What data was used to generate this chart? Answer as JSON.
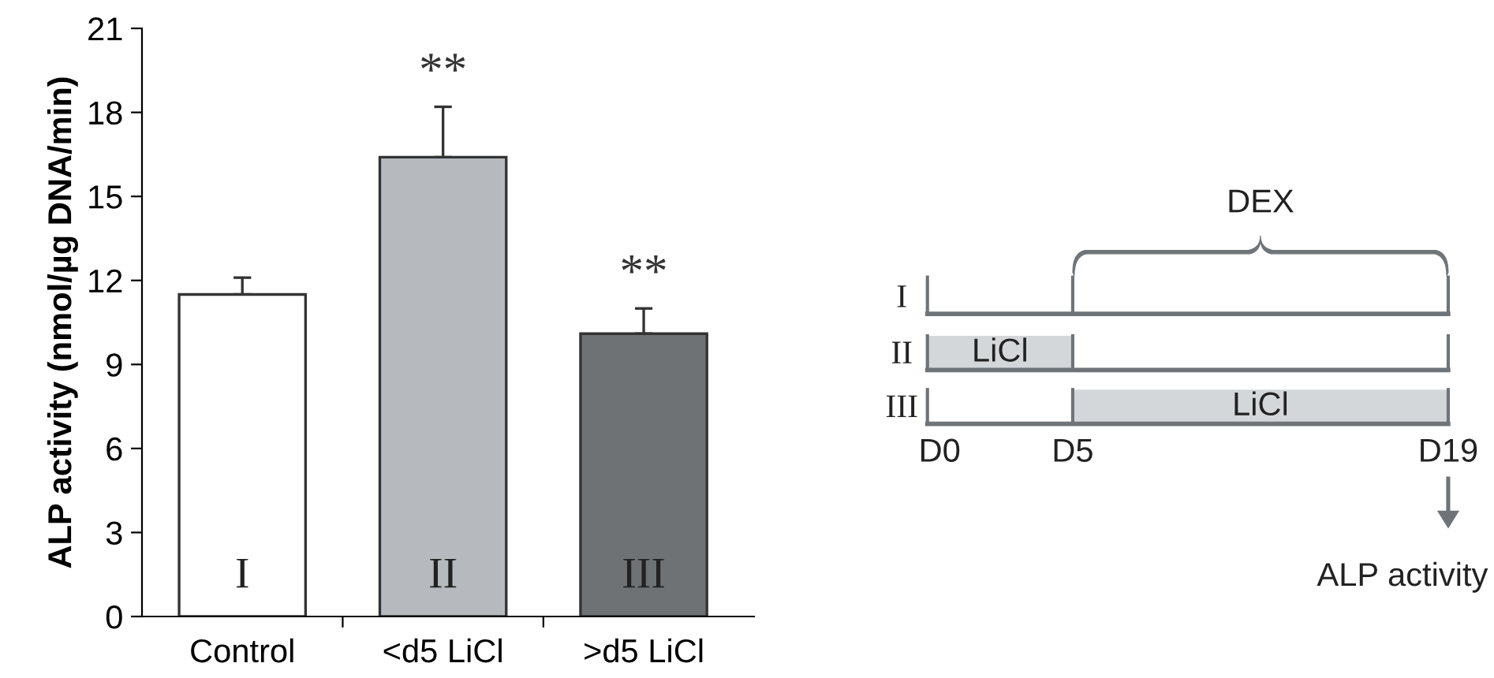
{
  "chart_data": [
    {
      "type": "bar",
      "ylabel": "ALP activity (nmol/µg DNA/min)",
      "categories": [
        "Control",
        "<d5 LiCl",
        ">d5 LiCl"
      ],
      "values": [
        11.5,
        16.4,
        10.1
      ],
      "colors": [
        "#ffffff",
        "#b6babe",
        "#6f7275"
      ],
      "errors": [
        [
          11.5,
          12.1
        ],
        [
          16.4,
          18.2
        ],
        [
          10.1,
          11.0
        ]
      ],
      "ylim": [
        0,
        21
      ],
      "yticks": [
        0,
        3,
        6,
        9,
        12,
        15,
        18,
        21
      ],
      "grid": false,
      "legend": false,
      "annotations": [
        "I",
        "II",
        "III",
        "**",
        "**"
      ]
    },
    {
      "type": "other",
      "annotations": [
        "DEX",
        "I",
        "II",
        "III",
        "LiCl",
        "LiCl",
        "D0",
        "D5",
        "D19",
        "ALP activity"
      ]
    }
  ]
}
